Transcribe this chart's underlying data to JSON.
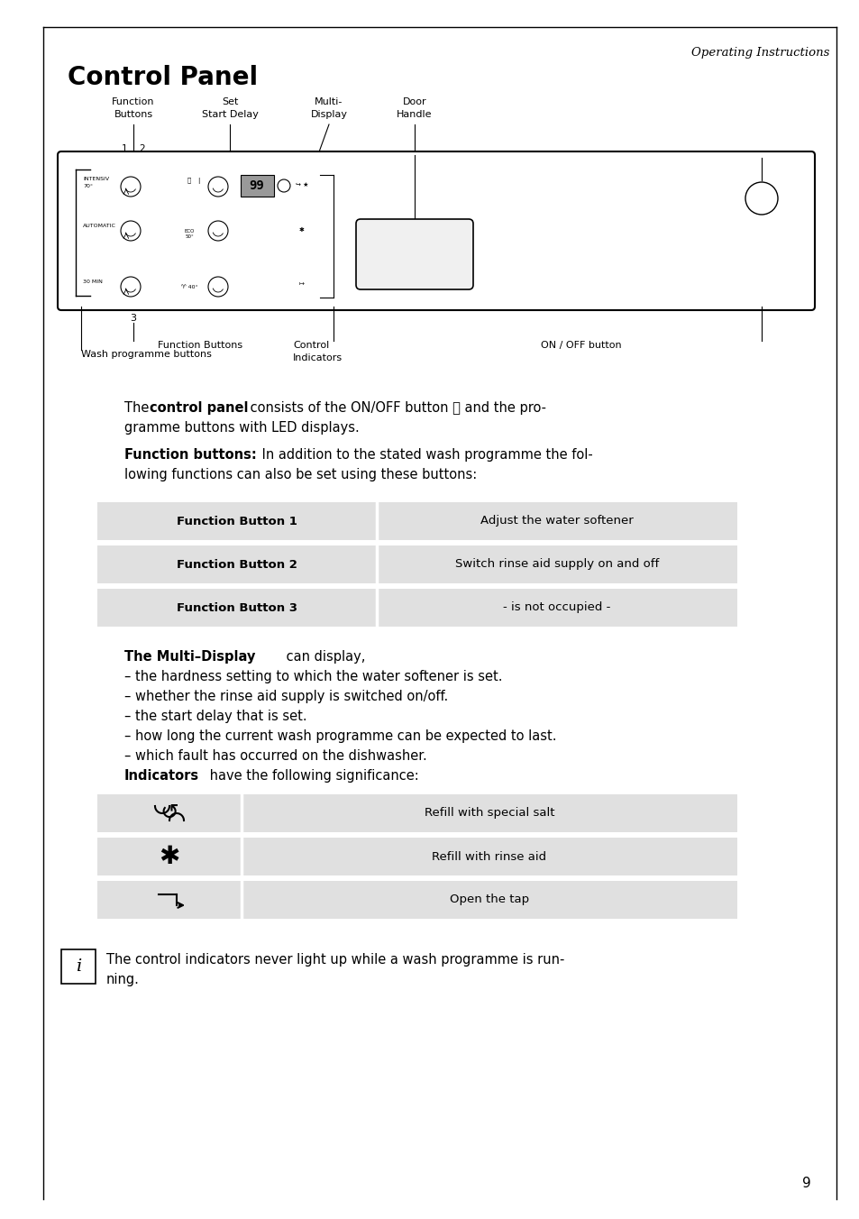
{
  "page_title": "Operating Instructions",
  "section_title": "Control Panel",
  "bg_color": "#ffffff",
  "func_table_rows": [
    [
      "Function Button 1",
      "Adjust the water softener"
    ],
    [
      "Function Button 2",
      "Switch rinse aid supply on and off"
    ],
    [
      "Function Button 3",
      "- is not occupied -"
    ]
  ],
  "ind_table_rows": [
    [
      "salt",
      "Refill with special salt"
    ],
    [
      "rinse",
      "Refill with rinse aid"
    ],
    [
      "tap",
      "Open the tap"
    ]
  ],
  "multi_display_items": [
    "– the hardness setting to which the water softener is set.",
    "– whether the rinse aid supply is switched on/off.",
    "– the start delay that is set.",
    "– how long the current wash programme can be expected to last.",
    "– which fault has occurred on the dishwasher."
  ],
  "page_number": "9"
}
